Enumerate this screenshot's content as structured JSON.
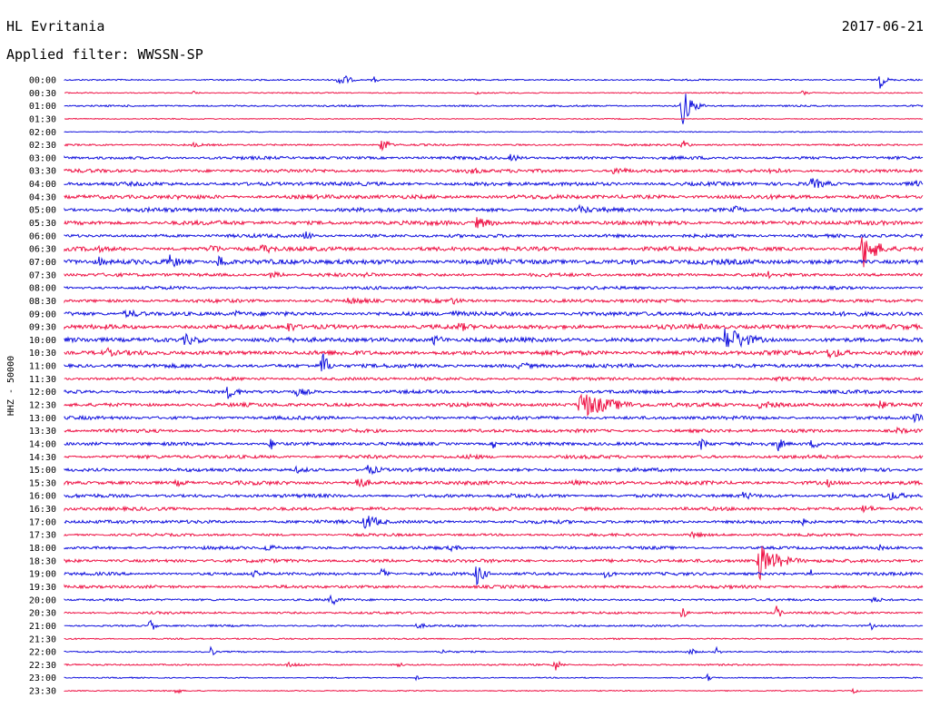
{
  "header": {
    "station": "HL Evritania",
    "date": "2017-06-21",
    "filter": "Applied filter: WWSSN-SP"
  },
  "chart_data": {
    "type": "line",
    "title": "HL Evritania",
    "ylabel": "HHZ - 50000",
    "rows": [
      "00:00",
      "00:30",
      "01:00",
      "01:30",
      "02:00",
      "02:30",
      "03:00",
      "03:30",
      "04:00",
      "04:30",
      "05:00",
      "05:30",
      "06:00",
      "06:30",
      "07:00",
      "07:30",
      "08:00",
      "08:30",
      "09:00",
      "09:30",
      "10:00",
      "10:30",
      "11:00",
      "11:30",
      "12:00",
      "12:30",
      "13:00",
      "13:30",
      "14:00",
      "14:30",
      "15:00",
      "15:30",
      "16:00",
      "16:30",
      "17:00",
      "17:30",
      "18:00",
      "18:30",
      "19:00",
      "19:30",
      "20:00",
      "20:30",
      "21:00",
      "21:30",
      "22:00",
      "22:30",
      "23:00",
      "23:30"
    ],
    "colors": [
      "#1010dd",
      "#ee1144"
    ],
    "row_noise": [
      0.8,
      0.6,
      0.9,
      0.6,
      0.6,
      1.0,
      1.6,
      1.8,
      2.0,
      2.2,
      2.2,
      2.2,
      1.8,
      2.2,
      2.6,
      1.8,
      1.6,
      1.8,
      2.2,
      2.4,
      2.4,
      2.4,
      2.0,
      1.6,
      1.8,
      2.0,
      1.8,
      1.8,
      1.8,
      1.8,
      1.8,
      2.0,
      1.8,
      1.8,
      1.8,
      1.4,
      1.6,
      1.8,
      1.6,
      1.6,
      1.2,
      1.2,
      1.0,
      0.8,
      0.8,
      0.9,
      0.6,
      0.6
    ],
    "events": [
      [
        0,
        0.32,
        12,
        8
      ],
      [
        0,
        0.36,
        5,
        4
      ],
      [
        0,
        0.95,
        10,
        6
      ],
      [
        1,
        0.15,
        3,
        5
      ],
      [
        1,
        0.48,
        3,
        4
      ],
      [
        1,
        0.86,
        3,
        10
      ],
      [
        2,
        0.72,
        25,
        8
      ],
      [
        2,
        0.73,
        8,
        10
      ],
      [
        5,
        0.37,
        12,
        6
      ],
      [
        5,
        0.72,
        8,
        6
      ],
      [
        5,
        0.15,
        3,
        12
      ],
      [
        6,
        0.52,
        5,
        12
      ],
      [
        7,
        0.47,
        4,
        30
      ],
      [
        7,
        0.64,
        5,
        20
      ],
      [
        7,
        0.82,
        4,
        26
      ],
      [
        8,
        0.87,
        7,
        20
      ],
      [
        8,
        0.99,
        5,
        12
      ],
      [
        9,
        0.13,
        3,
        20
      ],
      [
        9,
        0.56,
        4,
        14
      ],
      [
        10,
        0.2,
        3,
        20
      ],
      [
        10,
        0.6,
        5,
        24
      ],
      [
        10,
        0.78,
        5,
        14
      ],
      [
        11,
        0.48,
        7,
        20
      ],
      [
        12,
        0.28,
        7,
        8
      ],
      [
        13,
        0.04,
        4,
        12
      ],
      [
        13,
        0.17,
        8,
        10
      ],
      [
        13,
        0.23,
        6,
        20
      ],
      [
        13,
        0.93,
        24,
        14
      ],
      [
        14,
        0.04,
        6,
        10
      ],
      [
        14,
        0.12,
        10,
        14
      ],
      [
        14,
        0.18,
        8,
        14
      ],
      [
        14,
        0.66,
        4,
        18
      ],
      [
        14,
        0.8,
        3,
        16
      ],
      [
        15,
        0.24,
        4,
        20
      ],
      [
        15,
        0.35,
        4,
        14
      ],
      [
        15,
        0.82,
        5,
        4
      ],
      [
        17,
        0.33,
        4,
        40
      ],
      [
        17,
        0.45,
        5,
        14
      ],
      [
        18,
        0.07,
        5,
        30
      ],
      [
        18,
        0.2,
        4,
        12
      ],
      [
        18,
        0.45,
        4,
        30
      ],
      [
        18,
        0.6,
        5,
        8
      ],
      [
        19,
        0.26,
        7,
        14
      ],
      [
        19,
        0.46,
        6,
        16
      ],
      [
        19,
        0.74,
        4,
        8
      ],
      [
        20,
        0.14,
        7,
        20
      ],
      [
        20,
        0.43,
        6,
        16
      ],
      [
        20,
        0.77,
        18,
        6
      ],
      [
        20,
        0.78,
        12,
        22
      ],
      [
        21,
        0.05,
        6,
        10
      ],
      [
        21,
        0.89,
        7,
        22
      ],
      [
        22,
        0.3,
        20,
        6
      ],
      [
        22,
        0.53,
        5,
        18
      ],
      [
        23,
        0.83,
        3,
        18
      ],
      [
        24,
        0.19,
        8,
        14
      ],
      [
        24,
        0.27,
        5,
        20
      ],
      [
        25,
        0.6,
        16,
        36
      ],
      [
        25,
        0.81,
        5,
        30
      ],
      [
        25,
        0.95,
        5,
        20
      ],
      [
        26,
        0.99,
        5,
        20
      ],
      [
        27,
        0.97,
        4,
        16
      ],
      [
        28,
        0.24,
        8,
        6
      ],
      [
        28,
        0.5,
        6,
        4
      ],
      [
        28,
        0.74,
        8,
        10
      ],
      [
        28,
        0.83,
        11,
        6
      ],
      [
        28,
        0.87,
        5,
        20
      ],
      [
        29,
        0.47,
        4,
        20
      ],
      [
        30,
        0.27,
        4,
        20
      ],
      [
        30,
        0.35,
        7,
        18
      ],
      [
        31,
        0.13,
        4,
        20
      ],
      [
        31,
        0.34,
        9,
        12
      ],
      [
        31,
        0.59,
        4,
        18
      ],
      [
        31,
        0.89,
        6,
        4
      ],
      [
        32,
        0.52,
        4,
        14
      ],
      [
        32,
        0.79,
        5,
        18
      ],
      [
        32,
        0.96,
        6,
        20
      ],
      [
        33,
        0.93,
        5,
        18
      ],
      [
        34,
        0.35,
        10,
        16
      ],
      [
        34,
        0.86,
        4,
        14
      ],
      [
        35,
        0.73,
        4,
        20
      ],
      [
        36,
        0.23,
        5,
        18
      ],
      [
        36,
        0.45,
        4,
        14
      ],
      [
        36,
        0.95,
        5,
        4
      ],
      [
        37,
        0.81,
        28,
        8
      ],
      [
        37,
        0.82,
        12,
        22
      ],
      [
        38,
        0.22,
        4,
        20
      ],
      [
        38,
        0.37,
        9,
        6
      ],
      [
        38,
        0.48,
        14,
        8
      ],
      [
        38,
        0.63,
        5,
        14
      ],
      [
        38,
        0.87,
        6,
        4
      ],
      [
        40,
        0.31,
        8,
        8
      ],
      [
        40,
        0.94,
        4,
        14
      ],
      [
        41,
        0.72,
        9,
        4
      ],
      [
        41,
        0.83,
        10,
        4
      ],
      [
        42,
        0.1,
        10,
        4
      ],
      [
        42,
        0.41,
        3,
        20
      ],
      [
        42,
        0.94,
        5,
        4
      ],
      [
        44,
        0.17,
        8,
        4
      ],
      [
        44,
        0.44,
        3,
        10
      ],
      [
        44,
        0.73,
        6,
        4
      ],
      [
        44,
        0.76,
        5,
        4
      ],
      [
        45,
        0.26,
        3,
        24
      ],
      [
        45,
        0.57,
        10,
        6
      ],
      [
        45,
        0.39,
        4,
        4
      ],
      [
        46,
        0.41,
        3,
        4
      ],
      [
        46,
        0.75,
        5,
        4
      ],
      [
        47,
        0.13,
        6,
        4
      ],
      [
        47,
        0.92,
        4,
        4
      ]
    ]
  }
}
